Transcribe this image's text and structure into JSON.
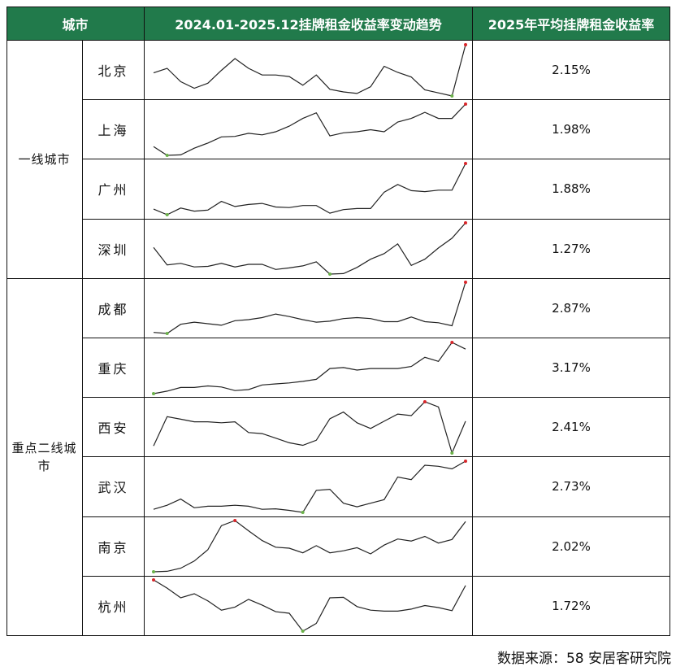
{
  "header": {
    "city": "城市",
    "trend": "2024.01-2025.12挂牌租金收益率变动趋势",
    "avg": "2025年平均挂牌租金收益率"
  },
  "groups": [
    {
      "label": "一线城市",
      "rows": 4
    },
    {
      "label": "重点二线城市",
      "rows": 6
    }
  ],
  "colors": {
    "header_bg": "#217a4b",
    "line": "#222222",
    "max_marker": "#d9262b",
    "min_marker": "#6bb24a"
  },
  "chart_data": {
    "type": "table",
    "note_series": "sparklines, relative level (0 = series min, 100 = series max), monthly 2024.01-2025.12",
    "x": [
      "2024.01",
      "2024.02",
      "2024.03",
      "2024.04",
      "2024.05",
      "2024.06",
      "2024.07",
      "2024.08",
      "2024.09",
      "2024.10",
      "2024.11",
      "2024.12",
      "2025.01",
      "2025.02",
      "2025.03",
      "2025.04",
      "2025.05",
      "2025.06",
      "2025.07",
      "2025.08",
      "2025.09",
      "2025.10",
      "2025.11",
      "2025.12"
    ],
    "rows": [
      {
        "city": "北京",
        "avg": "2.15%",
        "trend": [
          45,
          54,
          28,
          15,
          25,
          50,
          73,
          54,
          41,
          41,
          38,
          21,
          41,
          13,
          8,
          5,
          18,
          58,
          46,
          37,
          12,
          6,
          0,
          100
        ]
      },
      {
        "city": "上海",
        "avg": "1.98%",
        "trend": [
          17,
          0,
          1,
          14,
          24,
          36,
          37,
          43,
          40,
          46,
          57,
          72,
          83,
          38,
          44,
          46,
          50,
          46,
          65,
          72,
          84,
          72,
          72,
          100
        ]
      },
      {
        "city": "广州",
        "avg": "1.88%",
        "trend": [
          11,
          0,
          13,
          7,
          9,
          26,
          16,
          20,
          22,
          15,
          14,
          18,
          18,
          3,
          10,
          12,
          12,
          44,
          59,
          47,
          45,
          48,
          48,
          100
        ]
      },
      {
        "city": "深圳",
        "avg": "1.27%",
        "trend": [
          52,
          18,
          21,
          14,
          15,
          21,
          14,
          19,
          19,
          9,
          12,
          16,
          24,
          0,
          1,
          13,
          29,
          40,
          59,
          17,
          29,
          51,
          70,
          100
        ]
      },
      {
        "city": "成都",
        "avg": "2.87%",
        "trend": [
          2,
          0,
          18,
          22,
          19,
          16,
          25,
          27,
          31,
          38,
          33,
          27,
          22,
          24,
          29,
          31,
          29,
          23,
          23,
          32,
          23,
          21,
          15,
          100
        ]
      },
      {
        "city": "重庆",
        "avg": "3.17%",
        "trend": [
          0,
          5,
          12,
          12,
          15,
          13,
          6,
          8,
          17,
          19,
          21,
          24,
          28,
          49,
          51,
          46,
          49,
          49,
          49,
          53,
          71,
          63,
          100,
          87
        ]
      },
      {
        "city": "西安",
        "avg": "2.41%",
        "trend": [
          14,
          71,
          66,
          61,
          61,
          59,
          61,
          40,
          38,
          29,
          20,
          15,
          25,
          67,
          80,
          59,
          48,
          62,
          76,
          73,
          100,
          90,
          0,
          62
        ]
      },
      {
        "city": "武汉",
        "avg": "2.73%",
        "trend": [
          6,
          14,
          26,
          9,
          12,
          12,
          14,
          12,
          6,
          7,
          4,
          0,
          43,
          45,
          18,
          11,
          18,
          25,
          69,
          64,
          92,
          90,
          85,
          100
        ]
      },
      {
        "city": "南京",
        "avg": "2.02%",
        "trend": [
          0,
          1,
          7,
          21,
          43,
          90,
          100,
          80,
          61,
          48,
          46,
          37,
          51,
          37,
          41,
          47,
          35,
          52,
          64,
          60,
          69,
          56,
          63,
          98
        ]
      },
      {
        "city": "杭州",
        "avg": "1.72%",
        "trend": [
          100,
          84,
          65,
          73,
          59,
          41,
          47,
          62,
          51,
          38,
          35,
          0,
          15,
          65,
          66,
          48,
          41,
          39,
          39,
          43,
          50,
          46,
          40,
          89
        ]
      }
    ]
  },
  "footer": {
    "source": "数据来源：58 安居客研究院"
  }
}
